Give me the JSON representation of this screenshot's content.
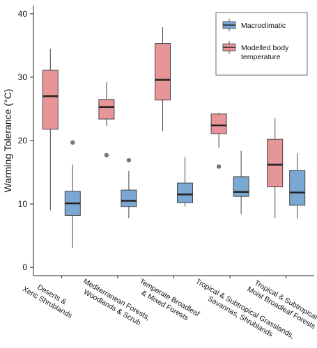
{
  "chart_data": {
    "type": "box",
    "y_label": "Warming Tolerance (°C)",
    "categories": [
      [
        "Deserts &",
        "Xeric Shrublands"
      ],
      [
        "Mediterranean Forests,",
        "Woodlands & Scrub"
      ],
      [
        "Temperate Broadleaf",
        "& Mixed Forests"
      ],
      [
        "Tropical & Subtropical Grasslands,",
        "Savannas, Shrublands"
      ],
      [
        "Tropical & Subtropical",
        "Moist Broadleaf Forests"
      ]
    ],
    "series": [
      {
        "name": [
          "Macroclimatic"
        ],
        "color": "#7ba7d3",
        "offset": 1,
        "min": [
          3.1,
          7.8,
          9.6,
          8.4,
          7.7
        ],
        "q1": [
          8.2,
          9.6,
          10.2,
          11.2,
          9.8
        ],
        "median": [
          10.1,
          10.5,
          11.5,
          11.9,
          11.8
        ],
        "q3": [
          12.0,
          12.2,
          13.3,
          14.3,
          15.3
        ],
        "max": [
          16.2,
          15.2,
          17.4,
          18.4,
          18.0
        ],
        "outliers": [
          [
            19.7
          ],
          [
            16.9
          ],
          [],
          [],
          []
        ]
      },
      {
        "name": [
          "Modelled body",
          "temperature"
        ],
        "color": "#e8959a",
        "offset": -1,
        "min": [
          9.0,
          22.3,
          21.5,
          18.9,
          7.8
        ],
        "q1": [
          21.8,
          23.4,
          26.4,
          21.1,
          12.7
        ],
        "median": [
          27.0,
          25.3,
          29.6,
          22.4,
          16.2
        ],
        "q3": [
          31.1,
          26.5,
          35.3,
          24.2,
          20.2
        ],
        "max": [
          34.5,
          29.2,
          37.9,
          24.4,
          23.5
        ],
        "outliers": [
          [],
          [
            17.7
          ],
          [],
          [
            15.9
          ],
          []
        ]
      }
    ],
    "ylim": [
      -1.3,
      41.3
    ],
    "yticks": [
      0,
      10,
      20,
      30,
      40
    ],
    "legend": "upper right"
  }
}
